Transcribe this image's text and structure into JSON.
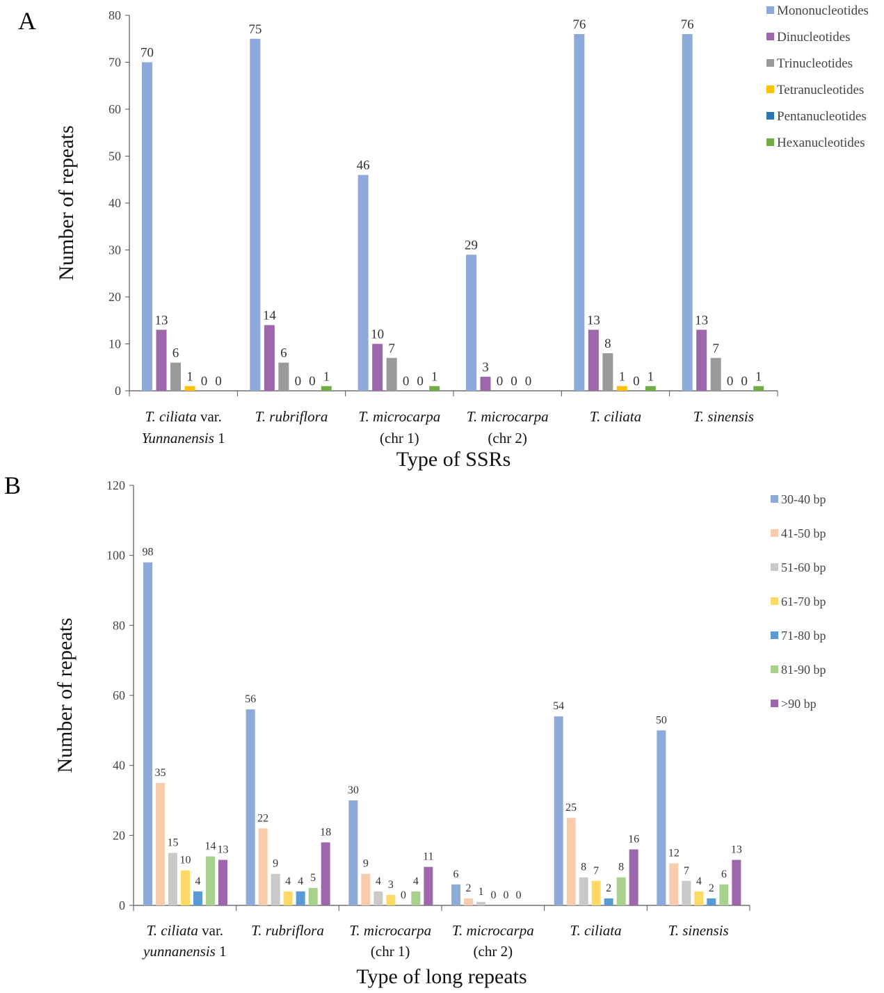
{
  "chart_data": [
    {
      "panel": "A",
      "type": "bar",
      "xlabel": "Type of SSRs",
      "ylabel": "Number of repeats",
      "ylim": [
        0,
        80
      ],
      "yticks": [
        0,
        10,
        20,
        30,
        40,
        50,
        60,
        70,
        80
      ],
      "legend_position": "top-right",
      "categories": [
        [
          {
            "t": "T. ciliata",
            "i": true
          },
          {
            "t": " var.",
            "i": false
          }
        ],
        [
          {
            "t": "T. rubriflora",
            "i": true
          }
        ],
        [
          {
            "t": "T. microcarpa",
            "i": true
          }
        ],
        [
          {
            "t": "T. microcarpa",
            "i": true
          }
        ],
        [
          {
            "t": "T. ciliata",
            "i": true
          }
        ],
        [
          {
            "t": "T. sinensis",
            "i": true
          }
        ]
      ],
      "categories_line2": [
        [
          {
            "t": "Yunnanensis",
            "i": true
          },
          {
            "t": "  1",
            "i": false
          }
        ],
        [],
        [
          {
            "t": "(chr 1)",
            "i": false
          }
        ],
        [
          {
            "t": "(chr 2)",
            "i": false
          }
        ],
        [],
        []
      ],
      "series": [
        {
          "name": "Mononucleotides",
          "color": "#8eaadb",
          "values": [
            70,
            75,
            46,
            29,
            76,
            76
          ],
          "labels": [
            "70",
            "75",
            "46",
            "29",
            "76",
            "76"
          ]
        },
        {
          "name": "Dinucleotides",
          "color": "#9e67ab",
          "values": [
            13,
            14,
            10,
            3,
            13,
            13
          ],
          "labels": [
            "13",
            "14",
            "10",
            "3",
            "13",
            "13"
          ]
        },
        {
          "name": "Trinucleotides",
          "color": "#9a9a9a",
          "values": [
            6,
            6,
            7,
            0,
            8,
            7
          ],
          "labels": [
            "6",
            "6",
            "7",
            "0",
            "8",
            "7"
          ]
        },
        {
          "name": "Tetranucleotides",
          "color": "#ffc000",
          "values": [
            1,
            0,
            0,
            0,
            1,
            0
          ],
          "labels": [
            "1",
            "0",
            "0",
            "0",
            "1",
            "0"
          ]
        },
        {
          "name": "Pentanucleotides",
          "color": "#2e75b6",
          "values": [
            0,
            0,
            0,
            0,
            0,
            0
          ],
          "labels": [
            "0",
            "0",
            "0",
            "0",
            "0",
            "0"
          ]
        },
        {
          "name": "Hexanucleotides",
          "color": "#70ad47",
          "values": [
            0,
            1,
            1,
            0,
            1,
            1
          ],
          "labels": [
            "0",
            "1",
            "1",
            "",
            "1",
            "1"
          ]
        }
      ]
    },
    {
      "panel": "B",
      "type": "bar",
      "xlabel": "Type of long repeats",
      "ylabel": "Number of repeats",
      "ylim": [
        0,
        120
      ],
      "yticks": [
        0,
        20,
        40,
        60,
        80,
        100,
        120
      ],
      "legend_position": "top-right",
      "categories": [
        [
          {
            "t": "T. ciliata",
            "i": true
          },
          {
            "t": " var.",
            "i": false
          }
        ],
        [
          {
            "t": "T. rubriflora",
            "i": true
          }
        ],
        [
          {
            "t": "T. microcarpa",
            "i": true
          }
        ],
        [
          {
            "t": "T. microcarpa",
            "i": true
          }
        ],
        [
          {
            "t": "T. ciliata",
            "i": true
          }
        ],
        [
          {
            "t": "T. sinensis",
            "i": true
          }
        ]
      ],
      "categories_line2": [
        [
          {
            "t": "yunnanensis",
            "i": true
          },
          {
            "t": "  1",
            "i": false
          }
        ],
        [],
        [
          {
            "t": "(chr 1)",
            "i": false
          }
        ],
        [
          {
            "t": "(chr 2)",
            "i": false
          }
        ],
        [],
        []
      ],
      "series": [
        {
          "name": "30-40 bp",
          "color": "#8eaadb",
          "values": [
            98,
            56,
            30,
            6,
            54,
            50
          ],
          "labels": [
            "98",
            "56",
            "30",
            "6",
            "54",
            "50"
          ]
        },
        {
          "name": "41-50 bp",
          "color": "#f8cbad",
          "values": [
            35,
            22,
            9,
            2,
            25,
            12
          ],
          "labels": [
            "35",
            "22",
            "9",
            "2",
            "25",
            "12"
          ]
        },
        {
          "name": "51-60 bp",
          "color": "#c9c9c9",
          "values": [
            15,
            9,
            4,
            1,
            8,
            7
          ],
          "labels": [
            "15",
            "9",
            "4",
            "1",
            "8",
            "7"
          ]
        },
        {
          "name": "61-70 bp",
          "color": "#ffd966",
          "values": [
            10,
            4,
            3,
            0,
            7,
            4
          ],
          "labels": [
            "10",
            "4",
            "3",
            "0",
            "7",
            "4"
          ]
        },
        {
          "name": "71-80 bp",
          "color": "#5b9bd5",
          "values": [
            4,
            4,
            0,
            0,
            2,
            2
          ],
          "labels": [
            "4",
            "4",
            "0",
            "0",
            "2",
            "2"
          ]
        },
        {
          "name": "81-90 bp",
          "color": "#a9d18e",
          "values": [
            14,
            5,
            4,
            0,
            8,
            6
          ],
          "labels": [
            "14",
            "5",
            "4",
            "0",
            "8",
            "6"
          ]
        },
        {
          "name": ">90 bp",
          "color": "#9e67ab",
          "values": [
            13,
            18,
            11,
            0,
            16,
            13
          ],
          "labels": [
            "13",
            "18",
            "11",
            "",
            "16",
            "13"
          ]
        }
      ]
    }
  ]
}
